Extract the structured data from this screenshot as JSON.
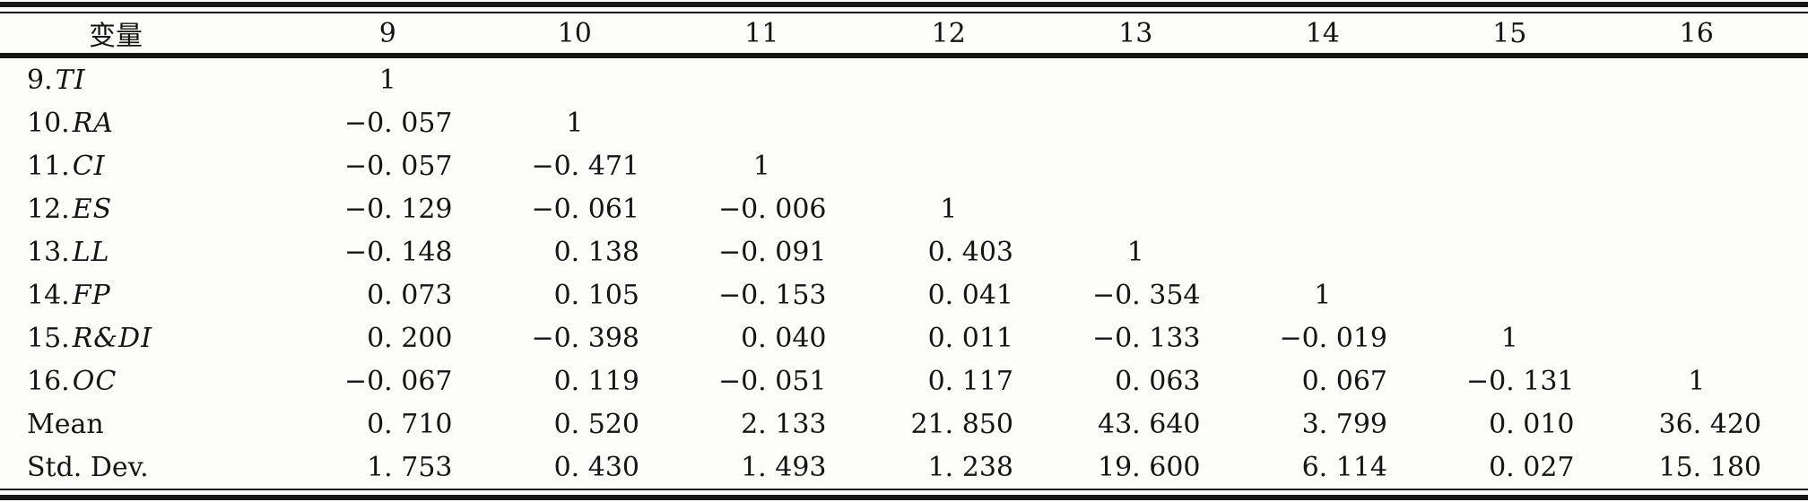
{
  "table": {
    "header": {
      "variable_label": "变量",
      "columns": [
        "9",
        "10",
        "11",
        "12",
        "13",
        "14",
        "15",
        "16"
      ]
    },
    "rows": [
      {
        "prefix": "9.",
        "name": "TI",
        "italic": true,
        "values": [
          "1",
          "",
          "",
          "",
          "",
          "",
          "",
          ""
        ]
      },
      {
        "prefix": "10.",
        "name": "RA",
        "italic": true,
        "values": [
          "−0. 057",
          "1",
          "",
          "",
          "",
          "",
          "",
          ""
        ]
      },
      {
        "prefix": "11.",
        "name": "CI",
        "italic": true,
        "values": [
          "−0. 057",
          "−0. 471",
          "1",
          "",
          "",
          "",
          "",
          ""
        ]
      },
      {
        "prefix": "12.",
        "name": "ES",
        "italic": true,
        "values": [
          "−0. 129",
          "−0. 061",
          "−0. 006",
          "1",
          "",
          "",
          "",
          ""
        ]
      },
      {
        "prefix": "13.",
        "name": "LL",
        "italic": true,
        "values": [
          "−0. 148",
          "0. 138",
          "−0. 091",
          "0. 403",
          "1",
          "",
          "",
          ""
        ]
      },
      {
        "prefix": "14.",
        "name": "FP",
        "italic": true,
        "values": [
          "0. 073",
          "0. 105",
          "−0. 153",
          "0. 041",
          "−0. 354",
          "1",
          "",
          ""
        ]
      },
      {
        "prefix": "15.",
        "name": "R&DI",
        "italic": true,
        "values": [
          "0. 200",
          "−0. 398",
          "0. 040",
          "0. 011",
          "−0. 133",
          "−0. 019",
          "1",
          ""
        ]
      },
      {
        "prefix": "16.",
        "name": "OC",
        "italic": true,
        "values": [
          "−0. 067",
          "0. 119",
          "−0. 051",
          "0. 117",
          "0. 063",
          "0. 067",
          "−0. 131",
          "1"
        ]
      },
      {
        "prefix": "",
        "name": "Mean",
        "italic": false,
        "values": [
          "0. 710",
          "0. 520",
          "2. 133",
          "21. 850",
          "43. 640",
          "3. 799",
          "0. 010",
          "36. 420"
        ]
      },
      {
        "prefix": "",
        "name": "Std. Dev.",
        "italic": false,
        "values": [
          "1. 753",
          "0. 430",
          "1. 493",
          "1. 238",
          "19. 600",
          "6. 114",
          "0. 027",
          "15. 180"
        ]
      }
    ]
  },
  "colors": {
    "rule": "#151515",
    "text": "#141414",
    "background": "#fdfdfc"
  }
}
